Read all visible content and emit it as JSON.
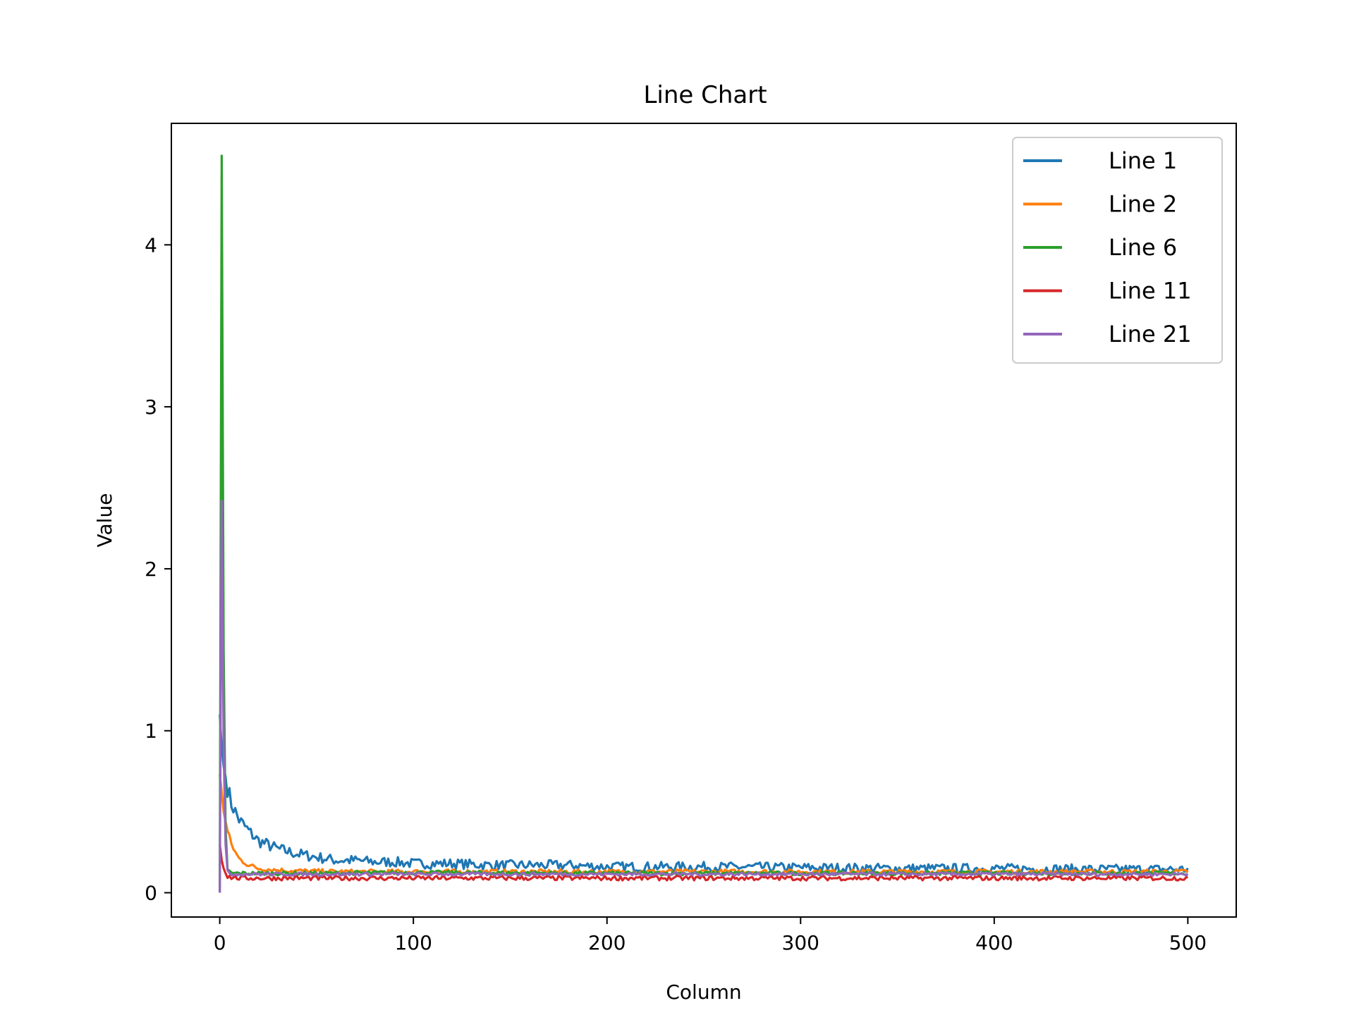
{
  "chart_data": {
    "type": "line",
    "title": "Line Chart",
    "xlabel": "Column",
    "ylabel": "Value",
    "xlim": [
      -25,
      525
    ],
    "ylim": [
      -0.15,
      4.75
    ],
    "xticks": [
      0,
      100,
      200,
      300,
      400,
      500
    ],
    "xtick_labels": [
      "0",
      "100",
      "200",
      "300",
      "400",
      "500"
    ],
    "yticks": [
      0,
      1,
      2,
      3,
      4
    ],
    "ytick_labels": [
      "0",
      "1",
      "2",
      "3",
      "4"
    ],
    "grid": false,
    "legend_position": "top-right",
    "x_range": [
      0,
      500
    ],
    "series": [
      {
        "name": "Line 1",
        "color": "#1f77b4",
        "x": [
          0,
          1,
          2,
          4,
          6,
          8,
          10,
          15,
          20,
          30,
          40,
          50,
          60,
          70,
          80,
          90,
          100,
          120,
          140,
          160,
          180,
          200,
          250,
          300,
          350,
          400,
          450,
          500
        ],
        "y": [
          1.1,
          0.9,
          0.78,
          0.65,
          0.55,
          0.5,
          0.45,
          0.38,
          0.32,
          0.27,
          0.24,
          0.22,
          0.2,
          0.2,
          0.19,
          0.19,
          0.18,
          0.18,
          0.17,
          0.17,
          0.17,
          0.16,
          0.16,
          0.155,
          0.15,
          0.15,
          0.145,
          0.145
        ]
      },
      {
        "name": "Line 2",
        "color": "#ff7f0e",
        "x": [
          0,
          1,
          2,
          4,
          6,
          8,
          10,
          15,
          20,
          30,
          40,
          60,
          100,
          200,
          300,
          400,
          500
        ],
        "y": [
          0.73,
          0.62,
          0.5,
          0.38,
          0.3,
          0.25,
          0.21,
          0.17,
          0.15,
          0.14,
          0.135,
          0.13,
          0.13,
          0.13,
          0.13,
          0.13,
          0.13
        ]
      },
      {
        "name": "Line 6",
        "color": "#2ca02c",
        "x": [
          0,
          1,
          2,
          3,
          4,
          6,
          10,
          50,
          100,
          200,
          300,
          400,
          500
        ],
        "y": [
          0.0,
          4.55,
          1.5,
          0.4,
          0.14,
          0.12,
          0.12,
          0.12,
          0.125,
          0.12,
          0.12,
          0.12,
          0.12
        ]
      },
      {
        "name": "Line 11",
        "color": "#d62728",
        "x": [
          0,
          1,
          2,
          3,
          4,
          6,
          10,
          50,
          100,
          200,
          300,
          400,
          500
        ],
        "y": [
          0.3,
          0.2,
          0.15,
          0.12,
          0.1,
          0.095,
          0.09,
          0.09,
          0.09,
          0.09,
          0.09,
          0.09,
          0.09
        ]
      },
      {
        "name": "Line 21",
        "color": "#9467bd",
        "x": [
          0,
          1,
          2,
          3,
          4,
          6,
          10,
          50,
          100,
          200,
          300,
          400,
          500
        ],
        "y": [
          0.0,
          2.42,
          0.9,
          0.3,
          0.13,
          0.115,
          0.115,
          0.115,
          0.115,
          0.115,
          0.115,
          0.115,
          0.115
        ]
      }
    ]
  }
}
